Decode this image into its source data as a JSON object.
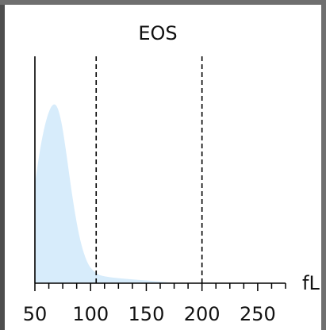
{
  "chart_data": {
    "type": "area",
    "title": "EOS",
    "xlabel": "",
    "ylabel": "",
    "unit_label": "fL",
    "xlim": [
      50,
      275
    ],
    "ylim": [
      0,
      1
    ],
    "x_ticks": [
      50,
      100,
      150,
      200,
      250
    ],
    "x_tick_labels": [
      "50",
      "100",
      "150",
      "200",
      "250"
    ],
    "minor_tick_step": 12.5,
    "reference_lines": [
      105,
      200
    ],
    "grid": false,
    "series": [
      {
        "fill_color": "#d7ecfb",
        "x": [
          50,
          54,
          58,
          62,
          66,
          70,
          74,
          78,
          82,
          86,
          90,
          94,
          98,
          102,
          106,
          110,
          120,
          135,
          150,
          165,
          175
        ],
        "values": [
          0.54,
          0.71,
          0.84,
          0.93,
          0.98,
          0.97,
          0.88,
          0.72,
          0.54,
          0.38,
          0.25,
          0.16,
          0.1,
          0.07,
          0.05,
          0.04,
          0.03,
          0.022,
          0.015,
          0.008,
          0
        ]
      }
    ]
  }
}
